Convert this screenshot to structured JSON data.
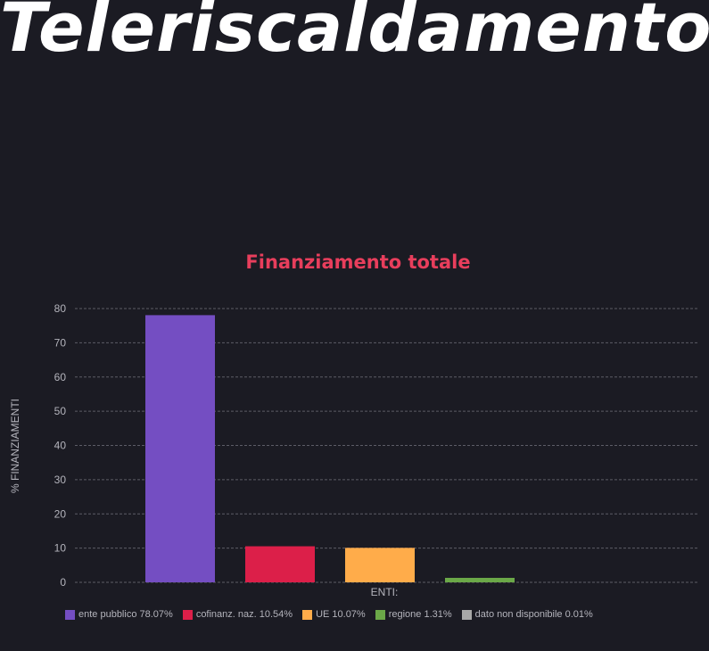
{
  "page": {
    "title": "Teleriscaldamento"
  },
  "chart_data": {
    "type": "bar",
    "title": "Finanziamento totale",
    "xlabel": "ENTI:",
    "ylabel": "% FINANZIAMENTI",
    "ylim": [
      0,
      80
    ],
    "yticks": [
      0,
      10,
      20,
      30,
      40,
      50,
      60,
      70,
      80
    ],
    "grid": true,
    "legend_position": "bottom",
    "categories": [
      "ente pubblico",
      "cofinanz. naz.",
      "UE",
      "regione",
      "dato non disponibile"
    ],
    "values": [
      78.07,
      10.54,
      10.07,
      1.31,
      0.01
    ],
    "colors": [
      "#744ec2",
      "#dc1f49",
      "#ffac4a",
      "#6ba848",
      "#a8a8a8"
    ],
    "legend": [
      {
        "label": "ente pubblico 78.07%",
        "color": "#744ec2"
      },
      {
        "label": "cofinanz. naz. 10.54%",
        "color": "#dc1f49"
      },
      {
        "label": "UE 10.07%",
        "color": "#ffac4a"
      },
      {
        "label": "regione 1.31%",
        "color": "#6ba848"
      },
      {
        "label": "dato non disponibile 0.01%",
        "color": "#a8a8a8"
      }
    ]
  }
}
